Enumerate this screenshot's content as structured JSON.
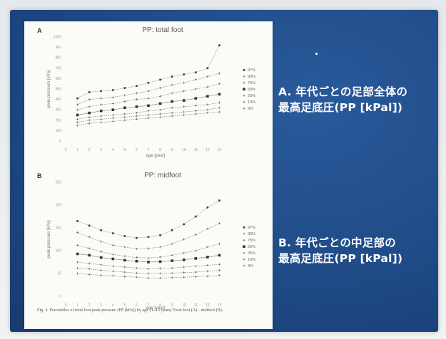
{
  "slide": {
    "label_a_line1": "A. 年代ごとの足部全体の",
    "label_a_line2": "最高足底圧(PP [kPal])",
    "label_b_line1": "B. 年代ごとの中足部の",
    "label_b_line2": "最高足底圧(PP [kPal])"
  },
  "figure": {
    "caption": "Fig. 4. Percentiles of total foot peak pressure (PP [kPa]) by age (1–13 years) Total foot (A) - midfoot (B)."
  },
  "colors": {
    "slide_bg": "#1f4a86",
    "card_bg": "#fbfbf8",
    "line": "#888888",
    "marker": "#333333"
  },
  "chart_data": [
    {
      "type": "line",
      "panel": "A",
      "title": "PP: total foot",
      "xlabel": "age [year]",
      "ylabel": "peak pressure [kPa]",
      "x": [
        1,
        2,
        3,
        4,
        5,
        6,
        7,
        8,
        9,
        10,
        11,
        12,
        13
      ],
      "xticks": [
        0,
        1,
        2,
        3,
        4,
        5,
        6,
        7,
        8,
        9,
        10,
        11,
        12,
        13
      ],
      "xlim": [
        0,
        14
      ],
      "ylim": [
        0,
        1000
      ],
      "yticks": [
        0,
        100,
        200,
        300,
        400,
        500,
        600,
        700,
        800,
        900,
        1000
      ],
      "ytick_labels": [
        "0",
        "100",
        "200",
        "300",
        "400",
        "500",
        "600",
        "700",
        "800",
        "900",
        "1000"
      ],
      "grid": false,
      "legend_position": "right",
      "series": [
        {
          "name": "97%",
          "marker": "circle",
          "values": [
            410,
            470,
            480,
            490,
            510,
            530,
            560,
            590,
            620,
            640,
            660,
            700,
            920
          ]
        },
        {
          "name": "90%",
          "marker": "plus",
          "values": [
            350,
            400,
            410,
            420,
            440,
            460,
            480,
            510,
            540,
            560,
            590,
            620,
            650
          ]
        },
        {
          "name": "75%",
          "marker": "plus",
          "values": [
            300,
            330,
            350,
            360,
            380,
            400,
            410,
            430,
            460,
            480,
            500,
            520,
            550
          ]
        },
        {
          "name": "50%",
          "marker": "square",
          "values": [
            250,
            270,
            290,
            300,
            320,
            330,
            340,
            360,
            380,
            390,
            410,
            430,
            450
          ]
        },
        {
          "name": "25%",
          "marker": "plus",
          "values": [
            210,
            230,
            240,
            250,
            260,
            270,
            290,
            300,
            320,
            330,
            340,
            350,
            370
          ]
        },
        {
          "name": "10%",
          "marker": "plus",
          "values": [
            180,
            200,
            210,
            220,
            230,
            240,
            250,
            260,
            270,
            280,
            290,
            300,
            320
          ]
        },
        {
          "name": "3%",
          "marker": "plus",
          "values": [
            150,
            170,
            180,
            190,
            200,
            210,
            220,
            230,
            240,
            250,
            260,
            270,
            280
          ]
        }
      ]
    },
    {
      "type": "line",
      "panel": "B",
      "title": "PP: midfoot",
      "xlabel": "age [year]",
      "ylabel": "peak pressure [kPa]",
      "x": [
        1,
        2,
        3,
        4,
        5,
        6,
        7,
        8,
        9,
        10,
        11,
        12,
        13
      ],
      "xticks": [
        0,
        1,
        2,
        3,
        4,
        5,
        6,
        7,
        8,
        9,
        10,
        11,
        12,
        13
      ],
      "xlim": [
        0,
        14
      ],
      "ylim": [
        0,
        250
      ],
      "yticks": [
        0,
        50,
        100,
        150,
        200,
        250
      ],
      "ytick_labels": [
        "0",
        "50",
        "100",
        "150",
        "200",
        "250"
      ],
      "grid": false,
      "legend_position": "right",
      "series": [
        {
          "name": "97%",
          "marker": "circle",
          "values": [
            165,
            155,
            145,
            138,
            132,
            128,
            130,
            134,
            145,
            158,
            175,
            195,
            210
          ]
        },
        {
          "name": "90%",
          "marker": "plus",
          "values": [
            140,
            130,
            120,
            112,
            108,
            104,
            105,
            108,
            115,
            125,
            135,
            148,
            160
          ]
        },
        {
          "name": "75%",
          "marker": "plus",
          "values": [
            112,
            105,
            98,
            92,
            88,
            85,
            84,
            86,
            90,
            95,
            100,
            108,
            115
          ]
        },
        {
          "name": "50%",
          "marker": "square",
          "values": [
            93,
            90,
            85,
            82,
            79,
            77,
            75,
            76,
            78,
            80,
            83,
            86,
            90
          ]
        },
        {
          "name": "25%",
          "marker": "plus",
          "values": [
            75,
            72,
            69,
            66,
            64,
            62,
            60,
            61,
            62,
            64,
            66,
            68,
            70
          ]
        },
        {
          "name": "10%",
          "marker": "plus",
          "values": [
            62,
            60,
            57,
            55,
            53,
            51,
            50,
            50,
            51,
            52,
            53,
            55,
            57
          ]
        },
        {
          "name": "3%",
          "marker": "plus",
          "values": [
            50,
            48,
            46,
            45,
            43,
            42,
            40,
            40,
            41,
            42,
            43,
            44,
            46
          ]
        }
      ]
    }
  ]
}
